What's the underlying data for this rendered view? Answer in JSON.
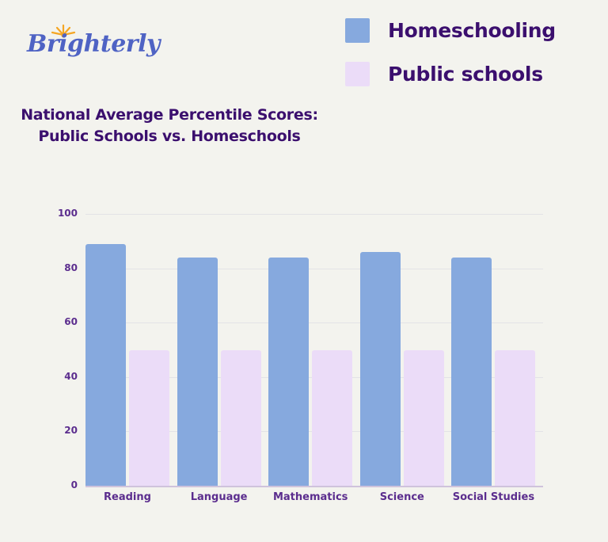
{
  "brand": {
    "logo_text": "Brighterly",
    "logo_icon": "sun-rays-icon",
    "logo_color": "#4f63c4",
    "sun_color": "#f5a623"
  },
  "legend": {
    "items": [
      {
        "label": "Homeschooling",
        "color": "#86a9de"
      },
      {
        "label": "Public schools",
        "color": "#ebdcf8"
      }
    ]
  },
  "title": {
    "line1": "National Average Percentile Scores:",
    "line2": "Public Schools vs. Homeschools"
  },
  "chart_data": {
    "type": "bar",
    "title": "National Average Percentile Scores: Public Schools vs. Homeschools",
    "xlabel": "",
    "ylabel": "",
    "categories": [
      "Reading",
      "Language",
      "Mathematics",
      "Science",
      "Social Studies"
    ],
    "series": [
      {
        "name": "Homeschooling",
        "values": [
          89,
          84,
          84,
          86,
          84
        ],
        "color": "#86a9de"
      },
      {
        "name": "Public schools",
        "values": [
          50,
          50,
          50,
          50,
          50
        ],
        "color": "#ebdcf8"
      }
    ],
    "ylim": [
      0,
      100
    ],
    "yticks": [
      "0",
      "20",
      "40",
      "60",
      "80",
      "100"
    ],
    "grid": true,
    "legend_position": "top-right"
  }
}
